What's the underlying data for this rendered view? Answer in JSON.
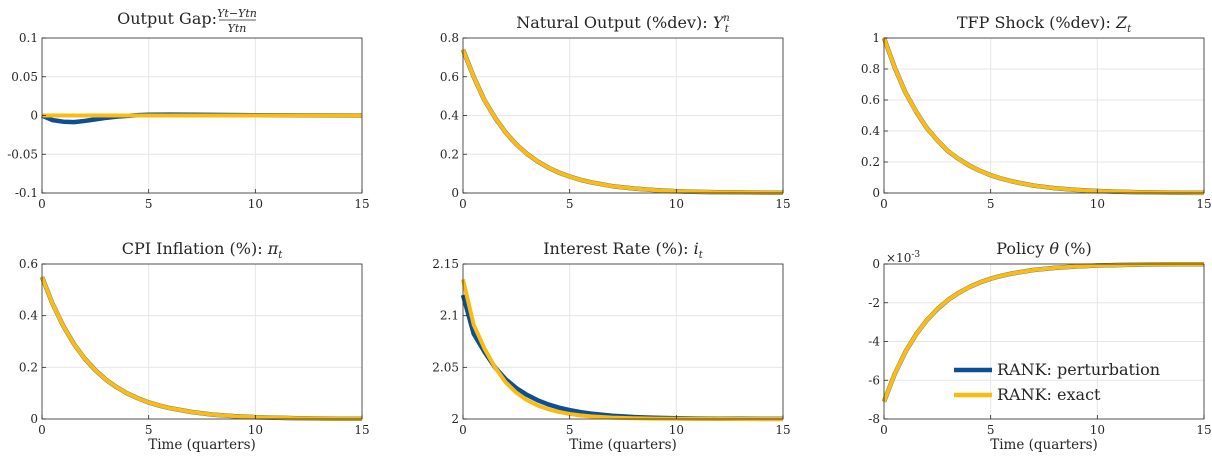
{
  "chart_data": [
    {
      "type": "line",
      "title": "Output Gap: ",
      "title_math": {
        "kind": "fraction",
        "num": "Yt−Ytn",
        "den": "Ytn"
      },
      "xlabel": "",
      "xlim": [
        0,
        15
      ],
      "ylim": [
        -0.1,
        0.1
      ],
      "xticks": [
        0,
        5,
        10,
        15
      ],
      "yticks": [
        -0.1,
        -0.05,
        0,
        0.05,
        0.1
      ],
      "ytick_labels": [
        "-0.1",
        "-0.05",
        "0",
        "0.05",
        "0.1"
      ],
      "grid": true,
      "series": [
        {
          "name": "RANK: perturbation",
          "color": "#0b4f96",
          "x": [
            0,
            0.5,
            1,
            1.5,
            2,
            2.5,
            3,
            3.5,
            4,
            4.5,
            5,
            6,
            7,
            8,
            10,
            12,
            15
          ],
          "y": [
            0,
            -0.006,
            -0.008,
            -0.0085,
            -0.007,
            -0.005,
            -0.003,
            -0.0015,
            -0.0005,
            0.0005,
            0.001,
            0.0012,
            0.001,
            0.0008,
            0.0004,
            0.0002,
            0
          ]
        },
        {
          "name": "RANK: exact",
          "color": "#fbbb10",
          "x": [
            0,
            15
          ],
          "y": [
            0,
            0
          ]
        }
      ]
    },
    {
      "type": "line",
      "title": "Natural Output (%dev): ",
      "title_math": {
        "kind": "symbol",
        "base": "Y",
        "sub": "t",
        "sup": "n"
      },
      "xlabel": "",
      "xlim": [
        0,
        15
      ],
      "ylim": [
        0,
        0.8
      ],
      "xticks": [
        0,
        5,
        10,
        15
      ],
      "yticks": [
        0,
        0.2,
        0.4,
        0.6,
        0.8
      ],
      "ytick_labels": [
        "0",
        "0.2",
        "0.4",
        "0.6",
        "0.8"
      ],
      "grid": true,
      "series": [
        {
          "name": "RANK: perturbation",
          "color": "#0b4f96",
          "x": [
            0,
            0.5,
            1,
            1.5,
            2,
            2.5,
            3,
            3.5,
            4,
            4.5,
            5,
            5.5,
            6,
            7,
            8,
            9,
            10,
            11,
            12,
            13,
            14,
            15
          ],
          "y": [
            0.74,
            0.6,
            0.48,
            0.389,
            0.312,
            0.251,
            0.202,
            0.163,
            0.131,
            0.105,
            0.085,
            0.068,
            0.055,
            0.035,
            0.023,
            0.015,
            0.009,
            0.006,
            0.004,
            0.003,
            0.002,
            0.001
          ]
        },
        {
          "name": "RANK: exact",
          "color": "#fbbb10",
          "x": [
            0,
            0.5,
            1,
            1.5,
            2,
            2.5,
            3,
            3.5,
            4,
            4.5,
            5,
            5.5,
            6,
            7,
            8,
            9,
            10,
            11,
            12,
            13,
            14,
            15
          ],
          "y": [
            0.74,
            0.6,
            0.48,
            0.389,
            0.312,
            0.251,
            0.202,
            0.163,
            0.131,
            0.105,
            0.085,
            0.068,
            0.055,
            0.035,
            0.023,
            0.015,
            0.009,
            0.006,
            0.004,
            0.003,
            0.002,
            0.001
          ]
        }
      ]
    },
    {
      "type": "line",
      "title": "TFP Shock (%dev): ",
      "title_math": {
        "kind": "symbol",
        "base": "Z",
        "sub": "t",
        "sup": ""
      },
      "xlabel": "",
      "xlim": [
        0,
        15
      ],
      "ylim": [
        0,
        1
      ],
      "xticks": [
        0,
        5,
        10,
        15
      ],
      "yticks": [
        0,
        0.2,
        0.4,
        0.6,
        0.8,
        1
      ],
      "ytick_labels": [
        "0",
        "0.2",
        "0.4",
        "0.6",
        "0.8",
        "1"
      ],
      "grid": true,
      "series": [
        {
          "name": "RANK: perturbation",
          "color": "#0b4f96",
          "x": [
            0,
            0.5,
            1,
            1.5,
            2,
            2.5,
            3,
            3.5,
            4,
            4.5,
            5,
            5.5,
            6,
            7,
            8,
            9,
            10,
            11,
            12,
            13,
            14,
            15
          ],
          "y": [
            1,
            0.81,
            0.65,
            0.526,
            0.42,
            0.34,
            0.27,
            0.22,
            0.177,
            0.143,
            0.115,
            0.093,
            0.075,
            0.048,
            0.031,
            0.02,
            0.013,
            0.008,
            0.005,
            0.003,
            0.002,
            0.001
          ]
        },
        {
          "name": "RANK: exact",
          "color": "#fbbb10",
          "x": [
            0,
            0.5,
            1,
            1.5,
            2,
            2.5,
            3,
            3.5,
            4,
            4.5,
            5,
            5.5,
            6,
            7,
            8,
            9,
            10,
            11,
            12,
            13,
            14,
            15
          ],
          "y": [
            1,
            0.81,
            0.65,
            0.526,
            0.42,
            0.34,
            0.27,
            0.22,
            0.177,
            0.143,
            0.115,
            0.093,
            0.075,
            0.048,
            0.031,
            0.02,
            0.013,
            0.008,
            0.005,
            0.003,
            0.002,
            0.001
          ]
        }
      ]
    },
    {
      "type": "line",
      "title": "CPI Inflation (%): ",
      "title_math": {
        "kind": "symbol",
        "base": "π",
        "sub": "t",
        "sup": ""
      },
      "xlabel": "Time (quarters)",
      "xlim": [
        0,
        15
      ],
      "ylim": [
        0,
        0.6
      ],
      "xticks": [
        0,
        5,
        10,
        15
      ],
      "yticks": [
        0,
        0.2,
        0.4,
        0.6
      ],
      "ytick_labels": [
        "0",
        "0.2",
        "0.4",
        "0.6"
      ],
      "grid": true,
      "series": [
        {
          "name": "RANK: perturbation",
          "color": "#0b4f96",
          "x": [
            0,
            0.5,
            1,
            1.5,
            2,
            2.5,
            3,
            3.5,
            4,
            4.5,
            5,
            5.5,
            6,
            7,
            8,
            9,
            10,
            11,
            12,
            13,
            14,
            15
          ],
          "y": [
            0.55,
            0.445,
            0.36,
            0.29,
            0.234,
            0.189,
            0.152,
            0.123,
            0.099,
            0.08,
            0.064,
            0.052,
            0.042,
            0.027,
            0.017,
            0.011,
            0.007,
            0.005,
            0.003,
            0.002,
            0.001,
            0.001
          ]
        },
        {
          "name": "RANK: exact",
          "color": "#fbbb10",
          "x": [
            0,
            0.5,
            1,
            1.5,
            2,
            2.5,
            3,
            3.5,
            4,
            4.5,
            5,
            5.5,
            6,
            7,
            8,
            9,
            10,
            11,
            12,
            13,
            14,
            15
          ],
          "y": [
            0.55,
            0.445,
            0.36,
            0.29,
            0.234,
            0.189,
            0.152,
            0.123,
            0.099,
            0.08,
            0.064,
            0.052,
            0.042,
            0.027,
            0.017,
            0.011,
            0.007,
            0.005,
            0.003,
            0.002,
            0.001,
            0.001
          ]
        }
      ]
    },
    {
      "type": "line",
      "title": "Interest Rate (%): ",
      "title_math": {
        "kind": "symbol",
        "base": "i",
        "sub": "t",
        "sup": ""
      },
      "xlabel": "Time (quarters)",
      "xlim": [
        0,
        15
      ],
      "ylim": [
        2,
        2.15
      ],
      "xticks": [
        0,
        5,
        10,
        15
      ],
      "yticks": [
        2,
        2.05,
        2.1,
        2.15
      ],
      "ytick_labels": [
        "2",
        "2.05",
        "2.1",
        "2.15"
      ],
      "grid": true,
      "series": [
        {
          "name": "RANK: perturbation",
          "color": "#0b4f96",
          "x": [
            0,
            0.5,
            1,
            1.5,
            2,
            2.5,
            3,
            3.5,
            4,
            4.5,
            5,
            5.5,
            6,
            7,
            8,
            9,
            10,
            11,
            12,
            13,
            14,
            15
          ],
          "y": [
            2.12,
            2.0825,
            2.0652,
            2.05,
            2.0385,
            2.0299,
            2.0233,
            2.0181,
            2.0141,
            2.011,
            2.0086,
            2.0067,
            2.0052,
            2.0032,
            2.0019,
            2.0012,
            2.0007,
            2.0004,
            2.0003,
            2.0002,
            2.0001,
            2.0001
          ]
        },
        {
          "name": "RANK: exact",
          "color": "#fbbb10",
          "x": [
            0,
            0.5,
            1,
            1.5,
            2,
            2.5,
            3,
            3.5,
            4,
            4.5,
            5,
            5.5,
            6,
            7,
            8,
            9,
            10,
            11,
            12,
            13,
            14,
            15
          ],
          "y": [
            2.135,
            2.0914,
            2.0685,
            2.05,
            2.0355,
            2.0255,
            2.0183,
            2.0131,
            2.0094,
            2.0068,
            2.0049,
            2.0035,
            2.0025,
            2.0013,
            2.0007,
            2.0004,
            2.0002,
            2.0001,
            2.0001,
            2,
            2,
            2
          ]
        }
      ]
    },
    {
      "type": "line",
      "title": "Policy ",
      "title_math": {
        "kind": "symbol",
        "base": "θ",
        "sub": "",
        "sup": "",
        "after": " (%)"
      },
      "xlabel": "Time (quarters)",
      "xlim": [
        0,
        15
      ],
      "ylim": [
        -8,
        0
      ],
      "xticks": [
        0,
        5,
        10,
        15
      ],
      "yticks": [
        -8,
        -6,
        -4,
        -2,
        0
      ],
      "ytick_labels": [
        "-8",
        "-6",
        "-4",
        "-2",
        "0"
      ],
      "y_multiplier": "×10",
      "y_multiplier_exp": "-3",
      "grid": true,
      "legend": {
        "location": "bottom-right"
      },
      "series": [
        {
          "name": "RANK: perturbation",
          "color": "#0b4f96",
          "x": [
            0,
            0.5,
            1,
            1.5,
            2,
            2.5,
            3,
            3.5,
            4,
            4.5,
            5,
            5.5,
            6,
            7,
            8,
            9,
            10,
            11,
            12,
            13,
            14,
            15
          ],
          "y": [
            -7.1,
            -5.68,
            -4.54,
            -3.64,
            -2.91,
            -2.33,
            -1.86,
            -1.49,
            -1.19,
            -0.95,
            -0.76,
            -0.61,
            -0.49,
            -0.31,
            -0.2,
            -0.13,
            -0.08,
            -0.05,
            -0.03,
            -0.02,
            -0.01,
            -0.01
          ]
        },
        {
          "name": "RANK: exact",
          "color": "#fbbb10",
          "x": [
            0,
            0.5,
            1,
            1.5,
            2,
            2.5,
            3,
            3.5,
            4,
            4.5,
            5,
            5.5,
            6,
            7,
            8,
            9,
            10,
            11,
            12,
            13,
            14,
            15
          ],
          "y": [
            -7.1,
            -5.68,
            -4.54,
            -3.64,
            -2.91,
            -2.33,
            -1.86,
            -1.49,
            -1.19,
            -0.95,
            -0.76,
            -0.61,
            -0.49,
            -0.31,
            -0.2,
            -0.13,
            -0.08,
            -0.05,
            -0.03,
            -0.02,
            -0.01,
            -0.01
          ]
        }
      ]
    }
  ]
}
